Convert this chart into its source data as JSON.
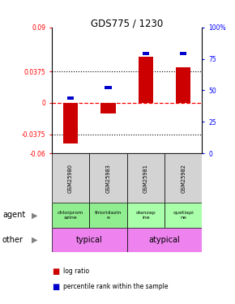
{
  "title": "GDS775 / 1230",
  "samples": [
    "GSM25980",
    "GSM25983",
    "GSM25981",
    "GSM25982"
  ],
  "log_ratios": [
    -0.048,
    -0.013,
    0.055,
    0.042
  ],
  "percentile_ranks_pct": [
    44,
    52,
    79,
    79
  ],
  "ylim_left": [
    -0.06,
    0.09
  ],
  "ylim_right": [
    0,
    100
  ],
  "yticks_left": [
    -0.06,
    -0.0375,
    0,
    0.0375,
    0.09
  ],
  "yticks_right": [
    0,
    25,
    50,
    75,
    100
  ],
  "ytick_labels_left": [
    "-0.06",
    "-0.0375",
    "0",
    "0.0375",
    "0.09"
  ],
  "ytick_labels_right": [
    "0",
    "25",
    "50",
    "75",
    "100%"
  ],
  "hlines_dotted": [
    0.0375,
    -0.0375
  ],
  "hline_dashed": 0,
  "agent_labels": [
    "chlorprom\nazine",
    "thioridazin\ne",
    "olanzap\nine",
    "quetiapi\nne"
  ],
  "agent_colors": [
    "#90ee90",
    "#90ee90",
    "#aaffaa",
    "#aaffaa"
  ],
  "other_info": [
    {
      "label": "typical",
      "color": "#ee82ee",
      "start": 0,
      "end": 2
    },
    {
      "label": "atypical",
      "color": "#ee82ee",
      "start": 2,
      "end": 4
    }
  ],
  "bar_color_red": "#cc0000",
  "bar_color_blue": "#0000cc",
  "sample_bg": "#d3d3d3",
  "legend_red": "log ratio",
  "legend_blue": "percentile rank within the sample"
}
